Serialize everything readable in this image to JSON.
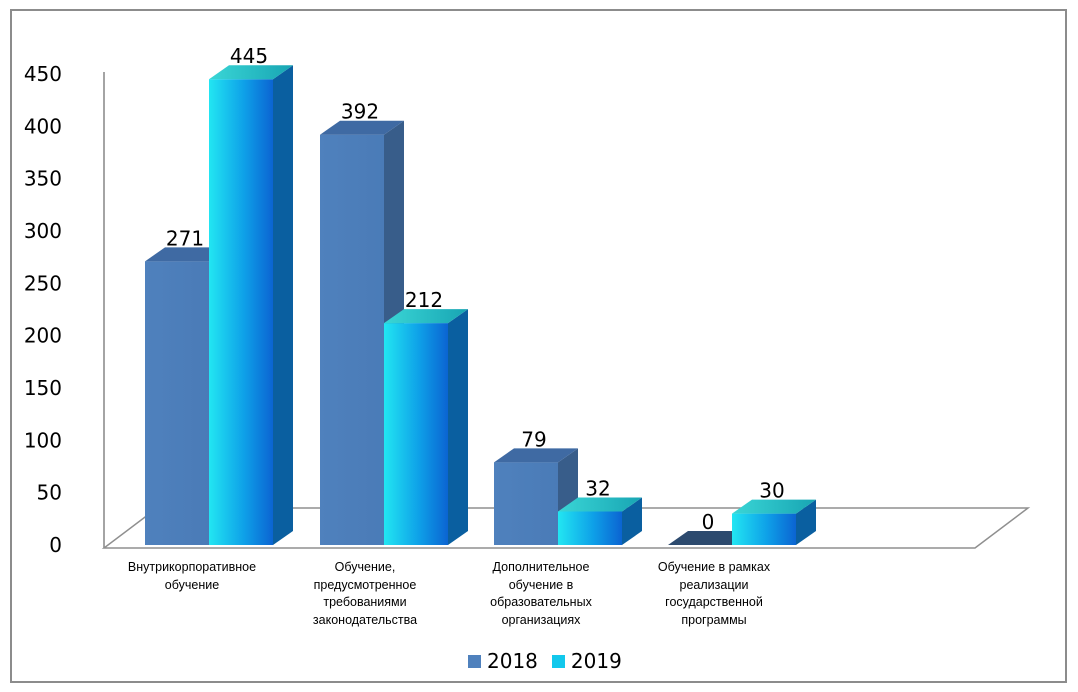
{
  "chart_data": {
    "type": "bar",
    "title": "",
    "xlabel": "",
    "ylabel": "",
    "ylim": [
      0,
      450
    ],
    "yticks": [
      0,
      50,
      100,
      150,
      200,
      250,
      300,
      350,
      400,
      450
    ],
    "categories": [
      "Внутрикорпоративное обучение",
      "Обучение, предусмотренное требованиями законодательства",
      "Дополнительное обучение в образовательных организациях",
      "Обучение в рамках реализации государственной программы"
    ],
    "series": [
      {
        "name": "2018",
        "values": [
          271,
          392,
          79,
          0
        ],
        "color": "#4f81bd"
      },
      {
        "name": "2019",
        "values": [
          445,
          212,
          32,
          30
        ],
        "color": "#12c8ec"
      }
    ],
    "legend_position": "bottom",
    "grid": false,
    "style": "3d-clustered-bar"
  }
}
